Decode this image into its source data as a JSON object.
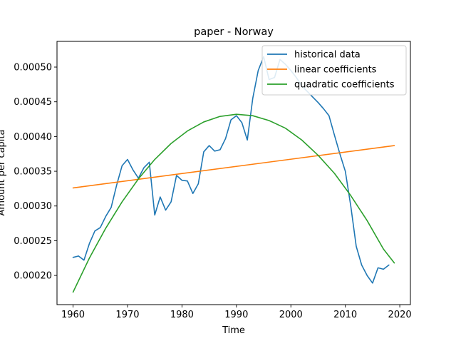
{
  "chart_data": {
    "type": "line",
    "title": "paper - Norway",
    "xlabel": "Time",
    "ylabel": "Amount per capita",
    "xlim": [
      1957.05,
      2021.95
    ],
    "ylim": [
      0.000158,
      0.000537
    ],
    "x_ticks": [
      1960,
      1970,
      1980,
      1990,
      2000,
      2010,
      2020
    ],
    "x_tick_labels": [
      "1960",
      "1970",
      "1980",
      "1990",
      "2000",
      "2010",
      "2020"
    ],
    "y_ticks": [
      0.0002,
      0.00025,
      0.0003,
      0.00035,
      0.0004,
      0.00045,
      0.0005
    ],
    "y_tick_labels": [
      "0.00020",
      "0.00025",
      "0.00030",
      "0.00035",
      "0.00040",
      "0.00045",
      "0.00050"
    ],
    "grid": false,
    "legend_position": "top-right",
    "series": [
      {
        "name": "historical data",
        "color": "#1f77b4",
        "x": [
          1960,
          1961,
          1962,
          1963,
          1964,
          1965,
          1966,
          1967,
          1968,
          1969,
          1970,
          1971,
          1972,
          1973,
          1974,
          1975,
          1976,
          1977,
          1978,
          1979,
          1980,
          1981,
          1982,
          1983,
          1984,
          1985,
          1986,
          1987,
          1988,
          1989,
          1990,
          1991,
          1992,
          1993,
          1994,
          1995,
          1996,
          1997,
          1998,
          1999,
          2000,
          2001,
          2002,
          2003,
          2004,
          2005,
          2006,
          2007,
          2008,
          2009,
          2010,
          2011,
          2012,
          2013,
          2014,
          2015,
          2016,
          2017,
          2018
        ],
        "values": [
          0.000226,
          0.000228,
          0.000222,
          0.000246,
          0.000264,
          0.000269,
          0.000285,
          0.000298,
          0.00033,
          0.000358,
          0.000367,
          0.000352,
          0.00034,
          0.000355,
          0.000363,
          0.000287,
          0.000313,
          0.000294,
          0.000306,
          0.000344,
          0.000337,
          0.000336,
          0.000318,
          0.000332,
          0.000378,
          0.000387,
          0.000379,
          0.000381,
          0.000397,
          0.000424,
          0.00043,
          0.00042,
          0.000395,
          0.000455,
          0.000495,
          0.000515,
          0.000482,
          0.000485,
          0.000511,
          0.000504,
          0.000495,
          0.000485,
          0.000473,
          0.000465,
          0.000457,
          0.000449,
          0.00044,
          0.00043,
          0.000402,
          0.000375,
          0.00035,
          0.0003,
          0.000242,
          0.000215,
          0.0002,
          0.000189,
          0.000211,
          0.000209,
          0.000215
        ]
      },
      {
        "name": "linear coefficients",
        "color": "#ff7f0e",
        "x": [
          1960,
          2019
        ],
        "values": [
          0.000326,
          0.000387
        ]
      },
      {
        "name": "quadratic coefficients",
        "color": "#2ca02c",
        "x": [
          1960,
          1963,
          1966,
          1969,
          1972,
          1975,
          1978,
          1981,
          1984,
          1987,
          1990,
          1993,
          1996,
          1999,
          2002,
          2005,
          2008,
          2011,
          2014,
          2017,
          2019
        ],
        "values": [
          0.000176,
          0.000225,
          0.000268,
          0.000306,
          0.000339,
          0.000367,
          0.00039,
          0.000408,
          0.000421,
          0.000429,
          0.000432,
          0.00043,
          0.000423,
          0.000412,
          0.000395,
          0.000373,
          0.000347,
          0.000315,
          0.000279,
          0.000238,
          0.000218
        ]
      }
    ]
  }
}
